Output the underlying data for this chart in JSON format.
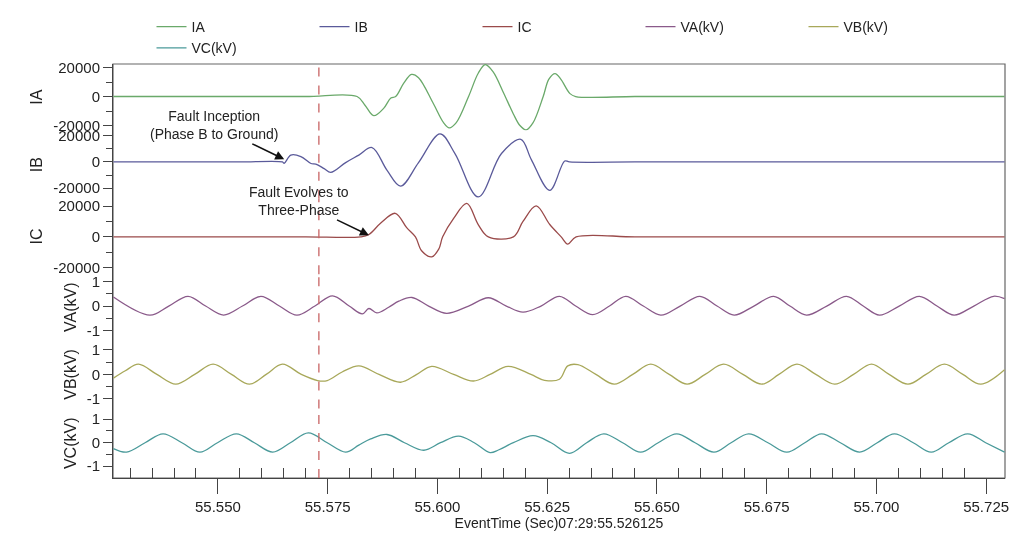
{
  "chart_data": [
    {
      "type": "line",
      "ylabel": "IA",
      "legend": "top",
      "tick_labels": "y",
      "xlim": [
        55.5261,
        55.7293
      ],
      "ylim": [
        -23400,
        22400
      ],
      "yticks": [
        -20000,
        {
          "value": -10000,
          "label": null
        },
        0,
        {
          "value": 10000,
          "label": null
        },
        20000
      ],
      "ref_lines": [
        {
          "axis": "x",
          "value": 55.573,
          "color": "#c86464",
          "line_style": "dashed"
        }
      ],
      "series": [
        {
          "name": "IA",
          "color": "#6aa96a",
          "x": [
            55.5262,
            55.54,
            55.555,
            55.57,
            55.5817,
            55.5835,
            55.5855,
            55.5878,
            55.5894,
            55.5905,
            55.5923,
            55.5941,
            55.5957,
            55.5991,
            55.6014,
            55.6027,
            55.6043,
            55.6071,
            55.6093,
            55.6109,
            55.6127,
            55.615,
            55.6173,
            55.6188,
            55.6202,
            55.6218,
            55.6241,
            55.6254,
            55.6268,
            55.6281,
            55.6302,
            55.6315,
            55.645,
            55.66,
            55.675,
            55.69,
            55.705,
            55.72,
            55.7292
          ],
          "values": [
            0,
            0,
            0,
            0,
            0,
            -6000,
            -13200,
            -8000,
            -1000,
            0,
            9000,
            15200,
            13000,
            -5000,
            -18000,
            -21600,
            -18000,
            0,
            16000,
            22000,
            17000,
            3000,
            -12000,
            -20000,
            -23000,
            -18000,
            0,
            12000,
            15800,
            12000,
            2000,
            0,
            0,
            0,
            0,
            0,
            0,
            0,
            0
          ]
        }
      ]
    },
    {
      "type": "line",
      "ylabel": "IB",
      "legend": "top",
      "tick_labels": "y",
      "xlim": [
        55.5261,
        55.7293
      ],
      "ylim": [
        -28000,
        24000
      ],
      "yticks": [
        -20000,
        {
          "value": -10000,
          "label": null
        },
        0,
        {
          "value": 10000,
          "label": null
        },
        20000
      ],
      "ref_lines": [
        {
          "axis": "x",
          "value": 55.573,
          "color": "#c86464",
          "line_style": "dashed"
        }
      ],
      "annotations": [
        {
          "text": "Fault Inception\n(Phase B to Ground)",
          "x": 55.5651,
          "y": 2000
        }
      ],
      "series": [
        {
          "name": "IB",
          "color": "#5a5a9a",
          "x": [
            55.5262,
            55.54,
            55.555,
            55.5647,
            55.5651,
            55.5666,
            55.5689,
            55.5712,
            55.5723,
            55.5742,
            55.5757,
            55.5791,
            55.5821,
            55.5851,
            55.5885,
            55.5916,
            55.5957,
            55.6006,
            55.604,
            55.6093,
            55.6146,
            55.619,
            55.6214,
            55.6256,
            55.629,
            55.6301,
            55.645,
            55.66,
            55.675,
            55.69,
            55.705,
            55.72,
            55.7292
          ],
          "values": [
            0,
            0,
            0,
            0,
            -1000,
            5200,
            4100,
            -1200,
            -1600,
            -5100,
            -8000,
            -500,
            5200,
            11000,
            -6200,
            -18400,
            -500,
            21400,
            6400,
            -26700,
            6400,
            17300,
            1800,
            -21700,
            700,
            0,
            0,
            0,
            0,
            0,
            0,
            0,
            0
          ]
        }
      ]
    },
    {
      "type": "line",
      "ylabel": "IC",
      "legend": "top",
      "tick_labels": "y",
      "xlim": [
        55.5261,
        55.7293
      ],
      "ylim": [
        -24300,
        24800
      ],
      "yticks": [
        -20000,
        {
          "value": -10000,
          "label": null
        },
        0,
        {
          "value": 10000,
          "label": null
        },
        20000
      ],
      "ref_lines": [
        {
          "axis": "x",
          "value": 55.573,
          "color": "#c86464",
          "line_style": "dashed"
        }
      ],
      "annotations": [
        {
          "text": "Fault Evolves to\nThree-Phase",
          "x": 55.5844,
          "y": 1000
        }
      ],
      "series": [
        {
          "name": "IC",
          "color": "#9a4a4a",
          "x": [
            55.5262,
            55.54,
            55.555,
            55.57,
            55.5825,
            55.5844,
            55.5871,
            55.5904,
            55.593,
            55.595,
            55.5964,
            55.5987,
            55.6003,
            55.6012,
            55.6037,
            55.6067,
            55.6093,
            55.6116,
            55.6173,
            55.6195,
            55.6225,
            55.6256,
            55.6282,
            55.6297,
            55.6316,
            55.645,
            55.66,
            55.675,
            55.69,
            55.705,
            55.72,
            55.7292
          ],
          "values": [
            0,
            0,
            0,
            0,
            0,
            1500,
            9000,
            15300,
            6000,
            0,
            -9000,
            -13000,
            -8000,
            0,
            12000,
            21700,
            8000,
            0,
            0,
            10000,
            20100,
            8000,
            0,
            -4700,
            0,
            0,
            0,
            0,
            0,
            0,
            0,
            0
          ]
        }
      ]
    },
    {
      "type": "line",
      "ylabel": "VA(kV)",
      "legend": "top",
      "tick_labels": "y",
      "xlim": [
        55.5261,
        55.7293
      ],
      "ylim": [
        -1.4,
        1.3
      ],
      "yticks": [
        -1,
        {
          "value": -0.5,
          "label": null
        },
        0,
        {
          "value": 0.5,
          "label": null
        },
        1
      ],
      "ref_lines": [
        {
          "axis": "x",
          "value": 55.573,
          "color": "#c86464",
          "line_style": "dashed"
        }
      ],
      "series": [
        {
          "name": "VA(kV)",
          "color": "#8a5a8a",
          "x": [
            55.5262,
            55.5345,
            55.5388,
            55.5432,
            55.5472,
            55.5513,
            55.5556,
            55.5598,
            55.564,
            55.568,
            55.5721,
            55.5761,
            55.5799,
            55.5829,
            55.5844,
            55.5862,
            55.5889,
            55.5912,
            55.5942,
            55.598,
            55.6021,
            55.6071,
            55.6116,
            55.6157,
            55.6195,
            55.6236,
            55.6278,
            55.6315,
            55.6354,
            55.6392,
            55.6429,
            55.6469,
            55.6509,
            55.6553,
            55.6598,
            55.6637,
            55.6676,
            55.6721,
            55.6766,
            55.6803,
            55.6841,
            55.6887,
            55.6932,
            55.697,
            55.7007,
            55.7052,
            55.7098,
            55.7138,
            55.7177,
            55.7222,
            55.7267,
            55.7292
          ],
          "values": [
            0.37,
            -0.37,
            0,
            0.4,
            0,
            -0.37,
            0,
            0.4,
            0,
            -0.37,
            0,
            0.42,
            0,
            -0.32,
            -0.1,
            -0.28,
            -0.05,
            0.2,
            0.35,
            0,
            -0.3,
            0,
            0.34,
            0,
            -0.25,
            0,
            0.4,
            0,
            -0.35,
            0,
            0.4,
            0,
            -0.37,
            0,
            0.4,
            0,
            -0.37,
            0,
            0.4,
            0,
            -0.37,
            0,
            0.4,
            0,
            -0.37,
            0,
            0.4,
            0,
            -0.37,
            0,
            0.4,
            0.3
          ]
        }
      ]
    },
    {
      "type": "line",
      "ylabel": "VB(kV)",
      "legend": "top",
      "tick_labels": "y",
      "xlim": [
        55.5261,
        55.7293
      ],
      "ylim": [
        -1.4,
        1.4
      ],
      "yticks": [
        -1,
        {
          "value": -0.5,
          "label": null
        },
        0,
        {
          "value": 0.5,
          "label": null
        },
        1
      ],
      "ref_lines": [
        {
          "axis": "x",
          "value": 55.573,
          "color": "#c86464",
          "line_style": "dashed"
        }
      ],
      "series": [
        {
          "name": "VB(kV)",
          "color": "#a8a85a",
          "x": [
            55.5262,
            55.5289,
            55.5319,
            55.5361,
            55.5404,
            55.5447,
            55.5489,
            55.5531,
            55.5572,
            55.561,
            55.5647,
            55.569,
            55.5727,
            55.5749,
            55.5783,
            55.5821,
            55.5867,
            55.5916,
            55.5953,
            55.5987,
            55.6037,
            55.6082,
            55.612,
            55.6161,
            55.6213,
            55.6244,
            55.6278,
            55.6297,
            55.632,
            55.6361,
            55.6403,
            55.6445,
            55.6486,
            55.6528,
            55.6569,
            55.661,
            55.6652,
            55.6696,
            55.6739,
            55.6778,
            55.6819,
            55.6862,
            55.6905,
            55.6948,
            55.6989,
            55.7029,
            55.7072,
            55.7113,
            55.7155,
            55.7197,
            55.7238,
            55.7292
          ],
          "values": [
            -0.15,
            0.15,
            0.42,
            0,
            -0.4,
            0,
            0.42,
            0,
            -0.4,
            0,
            0.42,
            0,
            -0.25,
            -0.25,
            0.1,
            0.35,
            0,
            -0.32,
            0,
            0.33,
            0,
            -0.27,
            0,
            0.33,
            0,
            -0.24,
            -0.2,
            0.35,
            0.4,
            0,
            -0.4,
            0,
            0.42,
            0,
            -0.4,
            0,
            0.42,
            0,
            -0.4,
            0,
            0.42,
            0,
            -0.4,
            0,
            0.42,
            0,
            -0.4,
            0,
            0.42,
            0,
            -0.4,
            0.19
          ]
        }
      ]
    },
    {
      "type": "line",
      "ylabel": "VC(kV)",
      "legend": "top",
      "xlabel": "EventTime (Sec)07:29:55.526125",
      "xlim": [
        55.5261,
        55.7293
      ],
      "xticks": [
        {
          "value": 55.53,
          "label": null
        },
        {
          "value": 55.535,
          "label": null
        },
        {
          "value": 55.54,
          "label": null
        },
        {
          "value": 55.545,
          "label": null
        },
        {
          "value": 55.55,
          "label": "55.550"
        },
        {
          "value": 55.555,
          "label": null
        },
        {
          "value": 55.56,
          "label": null
        },
        {
          "value": 55.565,
          "label": null
        },
        {
          "value": 55.57,
          "label": null
        },
        {
          "value": 55.575,
          "label": "55.575"
        },
        {
          "value": 55.58,
          "label": null
        },
        {
          "value": 55.585,
          "label": null
        },
        {
          "value": 55.59,
          "label": null
        },
        {
          "value": 55.595,
          "label": null
        },
        {
          "value": 55.6,
          "label": "55.600"
        },
        {
          "value": 55.605,
          "label": null
        },
        {
          "value": 55.61,
          "label": null
        },
        {
          "value": 55.615,
          "label": null
        },
        {
          "value": 55.62,
          "label": null
        },
        {
          "value": 55.625,
          "label": "55.625"
        },
        {
          "value": 55.63,
          "label": null
        },
        {
          "value": 55.635,
          "label": null
        },
        {
          "value": 55.64,
          "label": null
        },
        {
          "value": 55.645,
          "label": null
        },
        {
          "value": 55.65,
          "label": "55.650"
        },
        {
          "value": 55.655,
          "label": null
        },
        {
          "value": 55.66,
          "label": null
        },
        {
          "value": 55.665,
          "label": null
        },
        {
          "value": 55.67,
          "label": null
        },
        {
          "value": 55.675,
          "label": "55.675"
        },
        {
          "value": 55.68,
          "label": null
        },
        {
          "value": 55.685,
          "label": null
        },
        {
          "value": 55.69,
          "label": null
        },
        {
          "value": 55.695,
          "label": null
        },
        {
          "value": 55.7,
          "label": "55.700"
        },
        {
          "value": 55.705,
          "label": null
        },
        {
          "value": 55.71,
          "label": null
        },
        {
          "value": 55.715,
          "label": null
        },
        {
          "value": 55.72,
          "label": null
        },
        {
          "value": 55.725,
          "label": "55.725"
        }
      ],
      "ylim": [
        -1.5,
        1.45
      ],
      "yticks": [
        -1,
        {
          "value": -0.5,
          "label": null
        },
        0,
        {
          "value": 0.5,
          "label": null
        },
        1
      ],
      "ref_lines": [
        {
          "axis": "x",
          "value": 55.573,
          "color": "#c86464",
          "line_style": "dashed"
        }
      ],
      "series": [
        {
          "name": "VC(kV)",
          "color": "#4a9a9a",
          "x": [
            55.5262,
            55.5292,
            55.5334,
            55.5375,
            55.5418,
            55.5459,
            55.5499,
            55.5542,
            55.5583,
            55.5625,
            55.5665,
            55.5706,
            55.5749,
            55.5791,
            55.5821,
            55.5848,
            55.5885,
            55.5925,
            55.5969,
            55.6007,
            55.6048,
            55.6084,
            55.612,
            55.6139,
            55.6173,
            55.6218,
            55.6259,
            55.6301,
            55.634,
            55.6379,
            55.6422,
            55.6463,
            55.6503,
            55.6545,
            55.6587,
            55.663,
            55.6669,
            55.6709,
            55.6753,
            55.6796,
            55.6837,
            55.6875,
            55.6918,
            55.6962,
            55.7002,
            55.7041,
            55.7084,
            55.7125,
            55.7165,
            55.7208,
            55.7249,
            55.7292
          ],
          "values": [
            -0.25,
            -0.4,
            0,
            0.38,
            0,
            -0.4,
            0,
            0.38,
            0,
            -0.4,
            0,
            0.42,
            0,
            -0.4,
            -0.1,
            0.16,
            0.35,
            0,
            -0.32,
            0,
            0.28,
            0,
            -0.42,
            -0.31,
            0,
            0.3,
            0,
            -0.45,
            0,
            0.38,
            0,
            -0.4,
            0,
            0.38,
            0,
            -0.4,
            0,
            0.38,
            0,
            -0.4,
            0,
            0.38,
            0,
            -0.4,
            0,
            0.38,
            0,
            -0.4,
            0,
            0.38,
            0,
            -0.4
          ]
        }
      ]
    }
  ]
}
